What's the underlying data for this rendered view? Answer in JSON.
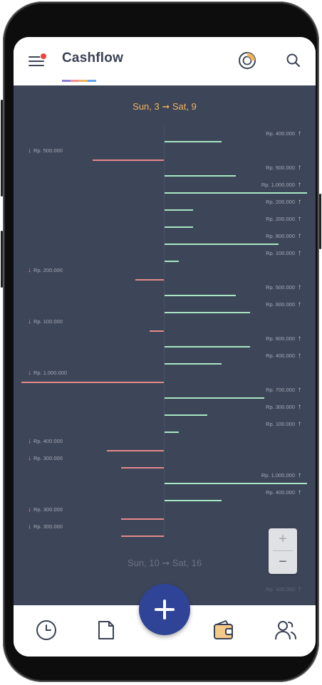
{
  "app": {
    "title": "Cashflow"
  },
  "colors": {
    "income": "#a8e6c4",
    "expense": "#e58a8a",
    "chart_bg": "#3d4558",
    "week_highlight": "#f0b45e",
    "fab": "#2f4496",
    "underline": [
      "#8a7fd6",
      "#f08f8f",
      "#f0b45e",
      "#5ea8f0"
    ]
  },
  "icons": {
    "menu": "menu-icon",
    "notification": "notification-dot",
    "chart": "donut-chart-icon",
    "search": "search-icon",
    "history": "clock-icon",
    "document": "document-icon",
    "wallet": "wallet-icon",
    "users": "users-icon",
    "add": "plus-icon",
    "income_arrow": "arrow-up-icon",
    "expense_arrow": "arrow-down-icon"
  },
  "weeks": [
    {
      "label": "Sun, 3 ➞ Sat, 9"
    },
    {
      "label": "Sun, 10 ➞ Sat, 16"
    }
  ],
  "chart_data": {
    "type": "bar",
    "currency": "Rp.",
    "week1": [
      {
        "type": "income",
        "label": "Rp. 400.000",
        "value": 400000
      },
      {
        "type": "expense",
        "label": "Rp. 500.000",
        "value": 500000
      },
      {
        "type": "income",
        "label": "Rp. 500.000",
        "value": 500000
      },
      {
        "type": "income",
        "label": "Rp. 1.000.000",
        "value": 1000000
      },
      {
        "type": "income",
        "label": "Rp. 200.000",
        "value": 200000
      },
      {
        "type": "income",
        "label": "Rp. 200.000",
        "value": 200000
      },
      {
        "type": "income",
        "label": "Rp. 800.000",
        "value": 800000
      },
      {
        "type": "income",
        "label": "Rp. 100.000",
        "value": 100000
      },
      {
        "type": "expense",
        "label": "Rp. 200.000",
        "value": 200000
      },
      {
        "type": "income",
        "label": "Rp. 500.000",
        "value": 500000
      },
      {
        "type": "income",
        "label": "Rp. 600.000",
        "value": 600000
      },
      {
        "type": "expense",
        "label": "Rp. 100.000",
        "value": 100000
      },
      {
        "type": "income",
        "label": "Rp. 600.000",
        "value": 600000
      },
      {
        "type": "income",
        "label": "Rp. 400.000",
        "value": 400000
      },
      {
        "type": "expense",
        "label": "Rp. 1.000.000",
        "value": 1000000
      },
      {
        "type": "income",
        "label": "Rp. 700.000",
        "value": 700000
      },
      {
        "type": "income",
        "label": "Rp. 300.000",
        "value": 300000
      },
      {
        "type": "income",
        "label": "Rp. 100.000",
        "value": 100000
      },
      {
        "type": "expense",
        "label": "Rp. 400.000",
        "value": 400000
      },
      {
        "type": "expense",
        "label": "Rp. 300.000",
        "value": 300000
      },
      {
        "type": "income",
        "label": "Rp. 1.000.000",
        "value": 1000000
      },
      {
        "type": "income",
        "label": "Rp. 400.000",
        "value": 400000
      },
      {
        "type": "expense",
        "label": "Rp. 300.000",
        "value": 300000
      },
      {
        "type": "expense",
        "label": "Rp. 300.000",
        "value": 300000
      }
    ],
    "week2": [
      {
        "type": "income",
        "label": "Rp. 100.000",
        "value": 100000
      }
    ]
  },
  "zoom": {
    "plus": "+",
    "minus": "−"
  }
}
